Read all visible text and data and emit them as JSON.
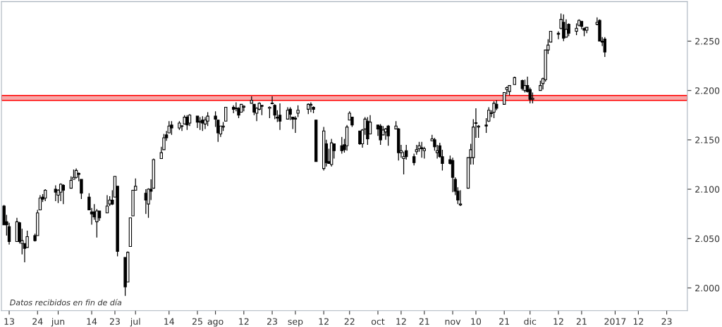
{
  "chart_data": {
    "type": "candlestick",
    "x": [
      "2016-05-11",
      "2016-05-12",
      "2016-05-13",
      "2016-05-16",
      "2016-05-17",
      "2016-05-18",
      "2016-05-19",
      "2016-05-20",
      "2016-05-23",
      "2016-05-24",
      "2016-05-25",
      "2016-05-26",
      "2016-05-27",
      "2016-05-31",
      "2016-06-01",
      "2016-06-02",
      "2016-06-03",
      "2016-06-06",
      "2016-06-07",
      "2016-06-08",
      "2016-06-09",
      "2016-06-10",
      "2016-06-13",
      "2016-06-14",
      "2016-06-15",
      "2016-06-16",
      "2016-06-17",
      "2016-06-20",
      "2016-06-21",
      "2016-06-22",
      "2016-06-23",
      "2016-06-24",
      "2016-06-27",
      "2016-06-28",
      "2016-06-29",
      "2016-06-30",
      "2016-07-01",
      "2016-07-05",
      "2016-07-06",
      "2016-07-07",
      "2016-07-08",
      "2016-07-11",
      "2016-07-12",
      "2016-07-13",
      "2016-07-14",
      "2016-07-15",
      "2016-07-18",
      "2016-07-19",
      "2016-07-20",
      "2016-07-21",
      "2016-07-22",
      "2016-07-25",
      "2016-07-26",
      "2016-07-27",
      "2016-07-28",
      "2016-07-29",
      "2016-08-01",
      "2016-08-02",
      "2016-08-03",
      "2016-08-04",
      "2016-08-05",
      "2016-08-08",
      "2016-08-09",
      "2016-08-10",
      "2016-08-11",
      "2016-08-12",
      "2016-08-15",
      "2016-08-16",
      "2016-08-17",
      "2016-08-18",
      "2016-08-19",
      "2016-08-22",
      "2016-08-23",
      "2016-08-24",
      "2016-08-25",
      "2016-08-26",
      "2016-08-29",
      "2016-08-30",
      "2016-08-31",
      "2016-09-01",
      "2016-09-02",
      "2016-09-06",
      "2016-09-07",
      "2016-09-08",
      "2016-09-09",
      "2016-09-12",
      "2016-09-13",
      "2016-09-14",
      "2016-09-15",
      "2016-09-16",
      "2016-09-19",
      "2016-09-20",
      "2016-09-21",
      "2016-09-22",
      "2016-09-23",
      "2016-09-26",
      "2016-09-27",
      "2016-09-28",
      "2016-09-29",
      "2016-09-30",
      "2016-10-03",
      "2016-10-04",
      "2016-10-05",
      "2016-10-06",
      "2016-10-07",
      "2016-10-10",
      "2016-10-11",
      "2016-10-12",
      "2016-10-13",
      "2016-10-14",
      "2016-10-17",
      "2016-10-18",
      "2016-10-19",
      "2016-10-20",
      "2016-10-21",
      "2016-10-24",
      "2016-10-25",
      "2016-10-26",
      "2016-10-27",
      "2016-10-28",
      "2016-10-31",
      "2016-11-01",
      "2016-11-02",
      "2016-11-03",
      "2016-11-04",
      "2016-11-07",
      "2016-11-08",
      "2016-11-09",
      "2016-11-10",
      "2016-11-11",
      "2016-11-14",
      "2016-11-15",
      "2016-11-16",
      "2016-11-17",
      "2016-11-18",
      "2016-11-21",
      "2016-11-22",
      "2016-11-23",
      "2016-11-25",
      "2016-11-28",
      "2016-11-29",
      "2016-11-30",
      "2016-12-01",
      "2016-12-02",
      "2016-12-05",
      "2016-12-06",
      "2016-12-07",
      "2016-12-08",
      "2016-12-09",
      "2016-12-12",
      "2016-12-13",
      "2016-12-14",
      "2016-12-15",
      "2016-12-16",
      "2016-12-19",
      "2016-12-20",
      "2016-12-21",
      "2016-12-22",
      "2016-12-23",
      "2016-12-27",
      "2016-12-28",
      "2016-12-29",
      "2016-12-30"
    ],
    "ohlc": [
      [
        2083,
        2084,
        2064,
        2064
      ],
      [
        2067,
        2074,
        2053,
        2064
      ],
      [
        2062,
        2066,
        2044,
        2047
      ],
      [
        2047,
        2071,
        2047,
        2067
      ],
      [
        2066,
        2067,
        2045,
        2047
      ],
      [
        2045,
        2060,
        2034,
        2048
      ],
      [
        2045,
        2045,
        2026,
        2040
      ],
      [
        2041,
        2058,
        2041,
        2052
      ],
      [
        2053,
        2055,
        2047,
        2048
      ],
      [
        2053,
        2079,
        2053,
        2076
      ],
      [
        2079,
        2094,
        2079,
        2091
      ],
      [
        2092,
        2095,
        2087,
        2090
      ],
      [
        2091,
        2100,
        2088,
        2099
      ],
      [
        2100,
        2104,
        2088,
        2097
      ],
      [
        2094,
        2100,
        2086,
        2099
      ],
      [
        2097,
        2106,
        2088,
        2105
      ],
      [
        2104,
        2105,
        2085,
        2099
      ],
      [
        2101,
        2113,
        2101,
        2109
      ],
      [
        2110,
        2120,
        2110,
        2112
      ],
      [
        2112,
        2121,
        2111,
        2119
      ],
      [
        2116,
        2117,
        2108,
        2115
      ],
      [
        2110,
        2110,
        2090,
        2096
      ],
      [
        2092,
        2096,
        2079,
        2079
      ],
      [
        2077,
        2081,
        2064,
        2075
      ],
      [
        2077,
        2085,
        2069,
        2072
      ],
      [
        2067,
        2080,
        2051,
        2078
      ],
      [
        2078,
        2078,
        2068,
        2071
      ],
      [
        2076,
        2094,
        2076,
        2083
      ],
      [
        2085,
        2093,
        2083,
        2089
      ],
      [
        2089,
        2099,
        2084,
        2085
      ],
      [
        2092,
        2113,
        2092,
        2113
      ],
      [
        2103,
        2103,
        2032,
        2037
      ],
      [
        2031,
        2031,
        1992,
        2001
      ],
      [
        2006,
        2037,
        2006,
        2036
      ],
      [
        2042,
        2071,
        2042,
        2071
      ],
      [
        2073,
        2099,
        2073,
        2099
      ],
      [
        2099,
        2111,
        2099,
        2103
      ],
      [
        2096,
        2100,
        2075,
        2089
      ],
      [
        2085,
        2101,
        2071,
        2100
      ],
      [
        2100,
        2110,
        2089,
        2098
      ],
      [
        2101,
        2131,
        2101,
        2130
      ],
      [
        2131,
        2143,
        2131,
        2137
      ],
      [
        2140,
        2156,
        2140,
        2152
      ],
      [
        2155,
        2159,
        2149,
        2152
      ],
      [
        2157,
        2169,
        2157,
        2164
      ],
      [
        2165,
        2169,
        2155,
        2162
      ],
      [
        2162,
        2169,
        2160,
        2167
      ],
      [
        2164,
        2164,
        2159,
        2164
      ],
      [
        2166,
        2175,
        2166,
        2173
      ],
      [
        2173,
        2175,
        2160,
        2165
      ],
      [
        2167,
        2176,
        2164,
        2175
      ],
      [
        2174,
        2174,
        2162,
        2168
      ],
      [
        2168,
        2173,
        2160,
        2169
      ],
      [
        2170,
        2174,
        2159,
        2167
      ],
      [
        2166,
        2173,
        2161,
        2170
      ],
      [
        2169,
        2178,
        2164,
        2174
      ],
      [
        2174,
        2179,
        2163,
        2171
      ],
      [
        2170,
        2170,
        2148,
        2157
      ],
      [
        2156,
        2164,
        2153,
        2164
      ],
      [
        2163,
        2168,
        2159,
        2164
      ],
      [
        2169,
        2183,
        2169,
        2183
      ],
      [
        2183,
        2185,
        2177,
        2181
      ],
      [
        2182,
        2188,
        2179,
        2182
      ],
      [
        2182,
        2183,
        2172,
        2175
      ],
      [
        2178,
        2186,
        2178,
        2186
      ],
      [
        2183,
        2185,
        2179,
        2184
      ],
      [
        2187,
        2194,
        2187,
        2190
      ],
      [
        2186,
        2186,
        2175,
        2178
      ],
      [
        2177,
        2183,
        2169,
        2182
      ],
      [
        2181,
        2188,
        2180,
        2187
      ],
      [
        2185,
        2185,
        2175,
        2184
      ],
      [
        2182,
        2184,
        2172,
        2183
      ],
      [
        2187,
        2194,
        2186,
        2187
      ],
      [
        2185,
        2186,
        2171,
        2175
      ],
      [
        2173,
        2180,
        2168,
        2172
      ],
      [
        2175,
        2187,
        2160,
        2169
      ],
      [
        2171,
        2183,
        2171,
        2180
      ],
      [
        2181,
        2183,
        2170,
        2176
      ],
      [
        2173,
        2173,
        2161,
        2171
      ],
      [
        2172,
        2174,
        2157,
        2171
      ],
      [
        2177,
        2185,
        2173,
        2180
      ],
      [
        2181,
        2187,
        2176,
        2186
      ],
      [
        2185,
        2188,
        2178,
        2186
      ],
      [
        2183,
        2184,
        2177,
        2181
      ],
      [
        2170,
        2170,
        2128,
        2128
      ],
      [
        2121,
        2163,
        2119,
        2159
      ],
      [
        2146,
        2150,
        2123,
        2127
      ],
      [
        2128,
        2141,
        2126,
        2126
      ],
      [
        2125,
        2151,
        2123,
        2147
      ],
      [
        2146,
        2146,
        2131,
        2139
      ],
      [
        2144,
        2153,
        2136,
        2139
      ],
      [
        2145,
        2151,
        2137,
        2140
      ],
      [
        2144,
        2165,
        2139,
        2163
      ],
      [
        2170,
        2179,
        2170,
        2177
      ],
      [
        2173,
        2173,
        2163,
        2165
      ],
      [
        2159,
        2159,
        2145,
        2146
      ],
      [
        2146,
        2161,
        2142,
        2160
      ],
      [
        2161,
        2173,
        2155,
        2171
      ],
      [
        2169,
        2173,
        2145,
        2151
      ],
      [
        2156,
        2175,
        2156,
        2168
      ],
      [
        2165,
        2165,
        2154,
        2161
      ],
      [
        2164,
        2166,
        2145,
        2150
      ],
      [
        2155,
        2164,
        2155,
        2160
      ],
      [
        2158,
        2162,
        2150,
        2161
      ],
      [
        2164,
        2165,
        2144,
        2154
      ],
      [
        2161,
        2169,
        2161,
        2164
      ],
      [
        2161,
        2162,
        2129,
        2137
      ],
      [
        2137,
        2145,
        2132,
        2139
      ],
      [
        2131,
        2138,
        2115,
        2133
      ],
      [
        2139,
        2145,
        2130,
        2133
      ],
      [
        2133,
        2136,
        2124,
        2127
      ],
      [
        2138,
        2145,
        2135,
        2140
      ],
      [
        2141,
        2148,
        2138,
        2144
      ],
      [
        2142,
        2148,
        2132,
        2141
      ],
      [
        2139,
        2143,
        2131,
        2141
      ],
      [
        2149,
        2155,
        2149,
        2151
      ],
      [
        2150,
        2152,
        2139,
        2143
      ],
      [
        2137,
        2145,
        2131,
        2139
      ],
      [
        2144,
        2147,
        2132,
        2133
      ],
      [
        2133,
        2140,
        2119,
        2126
      ],
      [
        2130,
        2134,
        2125,
        2126
      ],
      [
        2129,
        2132,
        2097,
        2112
      ],
      [
        2110,
        2112,
        2094,
        2098
      ],
      [
        2098,
        2102,
        2085,
        2089
      ],
      [
        2084,
        2099,
        2083,
        2085
      ],
      [
        2101,
        2132,
        2101,
        2132
      ],
      [
        2132,
        2146,
        2125,
        2140
      ],
      [
        2132,
        2171,
        2125,
        2163
      ],
      [
        2167,
        2182,
        2152,
        2167
      ],
      [
        2163,
        2165,
        2152,
        2164
      ],
      [
        2165,
        2172,
        2157,
        2164
      ],
      [
        2169,
        2183,
        2168,
        2180
      ],
      [
        2177,
        2180,
        2173,
        2177
      ],
      [
        2178,
        2189,
        2172,
        2187
      ],
      [
        2186,
        2190,
        2180,
        2182
      ],
      [
        2186,
        2198,
        2186,
        2198
      ],
      [
        2201,
        2204,
        2196,
        2203
      ],
      [
        2199,
        2205,
        2195,
        2205
      ],
      [
        2206,
        2214,
        2206,
        2213
      ],
      [
        2210,
        2211,
        2200,
        2202
      ],
      [
        2200,
        2211,
        2198,
        2205
      ],
      [
        2205,
        2214,
        2198,
        2199
      ],
      [
        2201,
        2203,
        2187,
        2191
      ],
      [
        2191,
        2198,
        2187,
        2192
      ],
      [
        2200,
        2210,
        2200,
        2205
      ],
      [
        2207,
        2213,
        2201,
        2212
      ],
      [
        2211,
        2241,
        2209,
        2241
      ],
      [
        2241,
        2252,
        2237,
        2246
      ],
      [
        2249,
        2260,
        2249,
        2260
      ],
      [
        2258,
        2260,
        2252,
        2257
      ],
      [
        2263,
        2278,
        2262,
        2272
      ],
      [
        2269,
        2277,
        2250,
        2253
      ],
      [
        2254,
        2272,
        2254,
        2262
      ],
      [
        2267,
        2268,
        2255,
        2258
      ],
      [
        2260,
        2268,
        2256,
        2263
      ],
      [
        2266,
        2272,
        2265,
        2271
      ],
      [
        2270,
        2270,
        2262,
        2265
      ],
      [
        2263,
        2264,
        2255,
        2261
      ],
      [
        2261,
        2264,
        2258,
        2264
      ],
      [
        2267,
        2274,
        2266,
        2269
      ],
      [
        2271,
        2272,
        2250,
        2250
      ],
      [
        2250,
        2254,
        2245,
        2249
      ],
      [
        2252,
        2254,
        2234,
        2239
      ]
    ],
    "xlim": [
      "2016-05-10",
      "2017-01-31"
    ],
    "xticks": [
      {
        "value": "2016-05-13",
        "label": "13"
      },
      {
        "value": "2016-05-24",
        "label": "24"
      },
      {
        "value": "2016-06-01",
        "label": "jun"
      },
      {
        "value": "2016-06-14",
        "label": "14"
      },
      {
        "value": "2016-06-23",
        "label": "23"
      },
      {
        "value": "2016-07-01",
        "label": "jul"
      },
      {
        "value": "2016-07-14",
        "label": "14"
      },
      {
        "value": "2016-07-25",
        "label": "25"
      },
      {
        "value": "2016-08-01",
        "label": "ago"
      },
      {
        "value": "2016-08-12",
        "label": "12"
      },
      {
        "value": "2016-08-23",
        "label": "23"
      },
      {
        "value": "2016-09-01",
        "label": "sep"
      },
      {
        "value": "2016-09-12",
        "label": "12"
      },
      {
        "value": "2016-09-22",
        "label": "22"
      },
      {
        "value": "2016-10-03",
        "label": "oct"
      },
      {
        "value": "2016-10-12",
        "label": "12"
      },
      {
        "value": "2016-10-21",
        "label": "21"
      },
      {
        "value": "2016-11-01",
        "label": "nov"
      },
      {
        "value": "2016-11-10",
        "label": "10"
      },
      {
        "value": "2016-11-21",
        "label": "21"
      },
      {
        "value": "2016-12-01",
        "label": "dic"
      },
      {
        "value": "2016-12-12",
        "label": "12"
      },
      {
        "value": "2016-12-21",
        "label": "21"
      },
      {
        "value": "2017-01-03",
        "label": "2017"
      },
      {
        "value": "2017-01-12",
        "label": "12"
      },
      {
        "value": "2017-01-23",
        "label": "23"
      }
    ],
    "ylim": [
      1977,
      2290
    ],
    "yticks": [
      {
        "value": 2000,
        "label": "2.000"
      },
      {
        "value": 2050,
        "label": "2.050"
      },
      {
        "value": 2100,
        "label": "2.100"
      },
      {
        "value": 2150,
        "label": "2.150"
      },
      {
        "value": 2200,
        "label": "2.200"
      },
      {
        "value": 2250,
        "label": "2.250"
      }
    ],
    "bands": [
      {
        "axis": "y",
        "from": 2190,
        "to": 2195,
        "color": "#f7a8a8"
      }
    ],
    "grid": false,
    "annotations": [
      "Datos recibidos en fin de día"
    ]
  }
}
